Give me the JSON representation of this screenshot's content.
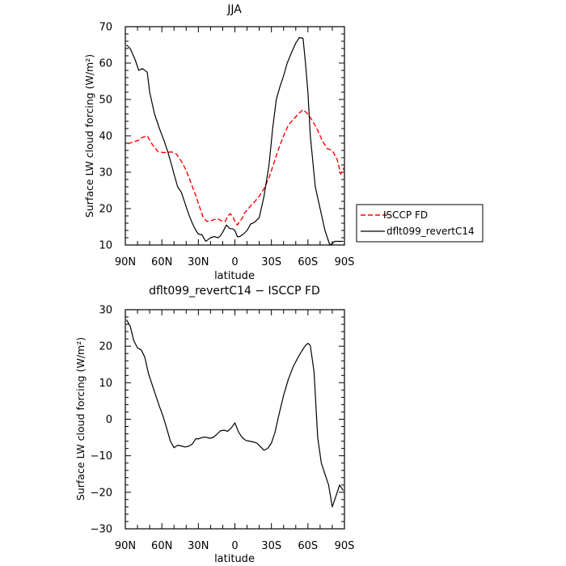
{
  "chart_data": [
    {
      "type": "line",
      "title": "JJA",
      "xlabel": "latitude",
      "ylabel": "Surface LW cloud forcing (W/m²)",
      "ylim": [
        10,
        70
      ],
      "xlim": [
        -90,
        90
      ],
      "x_note": "latitude, 90N (left) to 90S (right)",
      "xticks": [
        "90N",
        "60N",
        "30N",
        "0",
        "30S",
        "60S",
        "90S"
      ],
      "yticks": [
        "10",
        "20",
        "30",
        "40",
        "50",
        "60",
        "70"
      ],
      "legend_position": "right-outside",
      "series": [
        {
          "name": "ISCCP FD",
          "color": "#ff0000",
          "dash": "dashed",
          "x": [
            -88,
            -83,
            -79,
            -76,
            -72,
            -70,
            -67,
            -63,
            -58,
            -55,
            -52,
            -48,
            -44,
            -40,
            -36,
            -32,
            -29,
            -26,
            -23,
            -20,
            -17,
            -14,
            -12,
            -10,
            -8,
            -6,
            -4,
            -2,
            0,
            2,
            4,
            6,
            8,
            10,
            13,
            16,
            20,
            24,
            28,
            32,
            36,
            40,
            44,
            48,
            52,
            56,
            60,
            64,
            68,
            72,
            76,
            80,
            84,
            87,
            90
          ],
          "y": [
            37.8,
            38.4,
            38.8,
            39.6,
            40,
            38.8,
            37.2,
            35.6,
            35.4,
            35.5,
            35.6,
            35,
            33,
            30.5,
            27,
            23.5,
            20.5,
            17.5,
            16.5,
            16.6,
            17,
            17.2,
            16.8,
            16.5,
            16.5,
            17.8,
            18.6,
            18,
            16.5,
            15.5,
            16.5,
            17.3,
            18.8,
            19.6,
            20.8,
            21.8,
            23.4,
            25.5,
            28.5,
            32.5,
            36.5,
            40,
            43,
            44.5,
            46,
            47.2,
            46,
            44,
            41.5,
            38.5,
            36.5,
            36,
            33.5,
            29.5,
            31.5
          ]
        },
        {
          "name": "dflt099_revertC14",
          "color": "#000000",
          "dash": "solid",
          "x": [
            -89,
            -86,
            -82,
            -79,
            -76,
            -72,
            -70,
            -66,
            -62,
            -58,
            -55,
            -52,
            -50,
            -47,
            -44,
            -41,
            -38,
            -35,
            -32,
            -30,
            -27,
            -24,
            -22,
            -20,
            -17,
            -14,
            -12,
            -10,
            -7,
            -4,
            -2,
            0,
            2,
            4,
            7,
            10,
            13,
            16,
            20,
            24,
            28,
            31,
            34,
            37,
            40,
            43,
            46,
            50,
            53,
            56,
            58,
            60,
            62,
            66,
            70,
            74,
            78,
            80,
            82,
            84,
            86,
            89
          ],
          "y": [
            65,
            64,
            61,
            58,
            58.5,
            57.5,
            52,
            46,
            42,
            38.5,
            35.5,
            32,
            29.5,
            26,
            24.5,
            21.5,
            18.5,
            16,
            14,
            13,
            12.8,
            11,
            11.5,
            12,
            12.3,
            12,
            12.5,
            13.5,
            15.5,
            14.5,
            14.5,
            14,
            12.3,
            12.3,
            13,
            14,
            15.8,
            16.2,
            17.5,
            23.5,
            32,
            42,
            50,
            53.5,
            56.5,
            60,
            62.5,
            65.5,
            67,
            66.8,
            60,
            52,
            40,
            26,
            20,
            14,
            10,
            10.4,
            11,
            11,
            11,
            11
          ]
        }
      ]
    },
    {
      "type": "line",
      "title": "dflt099_revertC14 − ISCCP FD",
      "xlabel": "latitude",
      "ylabel": "Surface LW cloud forcing (W/m²)",
      "ylim": [
        -30,
        30
      ],
      "xlim": [
        -90,
        90
      ],
      "xticks": [
        "90N",
        "60N",
        "30N",
        "0",
        "30S",
        "60S",
        "90S"
      ],
      "yticks": [
        "−30",
        "−20",
        "−10",
        "0",
        "10",
        "20",
        "30"
      ],
      "series": [
        {
          "name": "",
          "color": "#000000",
          "dash": "solid",
          "x": [
            -89,
            -86,
            -83,
            -80,
            -77,
            -74,
            -71,
            -68,
            -65,
            -62,
            -59,
            -56,
            -53,
            -50,
            -47,
            -44,
            -41,
            -38,
            -35,
            -32,
            -30,
            -27,
            -24,
            -21,
            -18,
            -15,
            -12,
            -9,
            -6,
            -3,
            0,
            3,
            6,
            9,
            12,
            15,
            18,
            21,
            24,
            27,
            30,
            33,
            36,
            40,
            44,
            48,
            52,
            55,
            58,
            60,
            62,
            65,
            68,
            71,
            74,
            77,
            80,
            83,
            86,
            89
          ],
          "y": [
            27.2,
            25.5,
            21.5,
            19.5,
            19,
            17,
            12.5,
            9.5,
            6.5,
            3.5,
            0.8,
            -2.5,
            -6,
            -7.8,
            -7.1,
            -7.3,
            -7.6,
            -7.4,
            -6.8,
            -5.3,
            -5.4,
            -5,
            -4.9,
            -5.2,
            -5,
            -4.2,
            -3.2,
            -3,
            -3.3,
            -2.4,
            -1,
            -3.5,
            -5,
            -5.8,
            -6,
            -6.2,
            -6.5,
            -7.5,
            -8.5,
            -8,
            -6.5,
            -3.5,
            1,
            6.5,
            11,
            14.5,
            17,
            18.7,
            20.2,
            20.8,
            20.2,
            13,
            -5,
            -12,
            -15,
            -18,
            -24,
            -21,
            -18,
            -19.5
          ]
        }
      ]
    }
  ]
}
